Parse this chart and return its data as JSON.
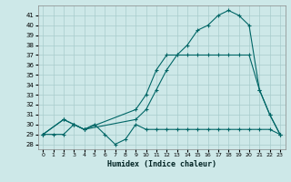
{
  "xlabel": "Humidex (Indice chaleur)",
  "background_color": "#cde8e8",
  "grid_color": "#a8cccc",
  "line_color": "#006666",
  "xlim": [
    -0.5,
    23.5
  ],
  "ylim": [
    27.5,
    42.0
  ],
  "xticks": [
    0,
    1,
    2,
    3,
    4,
    5,
    6,
    7,
    8,
    9,
    10,
    11,
    12,
    13,
    14,
    15,
    16,
    17,
    18,
    19,
    20,
    21,
    22,
    23
  ],
  "yticks": [
    28,
    29,
    30,
    31,
    32,
    33,
    34,
    35,
    36,
    37,
    38,
    39,
    40,
    41
  ],
  "line1_x": [
    0,
    1,
    2,
    3,
    4,
    5,
    6,
    7,
    8,
    9,
    10,
    11,
    12,
    13,
    14,
    15,
    16,
    17,
    18,
    19,
    20,
    21,
    22,
    23
  ],
  "line1_y": [
    29.0,
    29.0,
    29.0,
    30.0,
    29.5,
    30.0,
    29.0,
    28.0,
    28.5,
    30.0,
    29.5,
    29.5,
    29.5,
    29.5,
    29.5,
    29.5,
    29.5,
    29.5,
    29.5,
    29.5,
    29.5,
    29.5,
    29.5,
    29.0
  ],
  "line2_x": [
    0,
    2,
    3,
    4,
    9,
    10,
    11,
    12,
    13,
    14,
    15,
    16,
    17,
    18,
    19,
    20,
    21,
    22,
    23
  ],
  "line2_y": [
    29.0,
    30.5,
    30.0,
    29.5,
    30.5,
    31.5,
    33.5,
    35.5,
    37.0,
    37.0,
    37.0,
    37.0,
    37.0,
    37.0,
    37.0,
    37.0,
    33.5,
    31.0,
    29.0
  ],
  "line3_x": [
    0,
    2,
    3,
    4,
    9,
    10,
    11,
    12,
    13,
    14,
    15,
    16,
    17,
    18,
    19,
    20,
    21,
    22,
    23
  ],
  "line3_y": [
    29.0,
    30.5,
    30.0,
    29.5,
    31.5,
    33.0,
    35.5,
    37.0,
    37.0,
    38.0,
    39.5,
    40.0,
    41.0,
    41.5,
    41.0,
    40.0,
    33.5,
    31.0,
    29.0
  ]
}
